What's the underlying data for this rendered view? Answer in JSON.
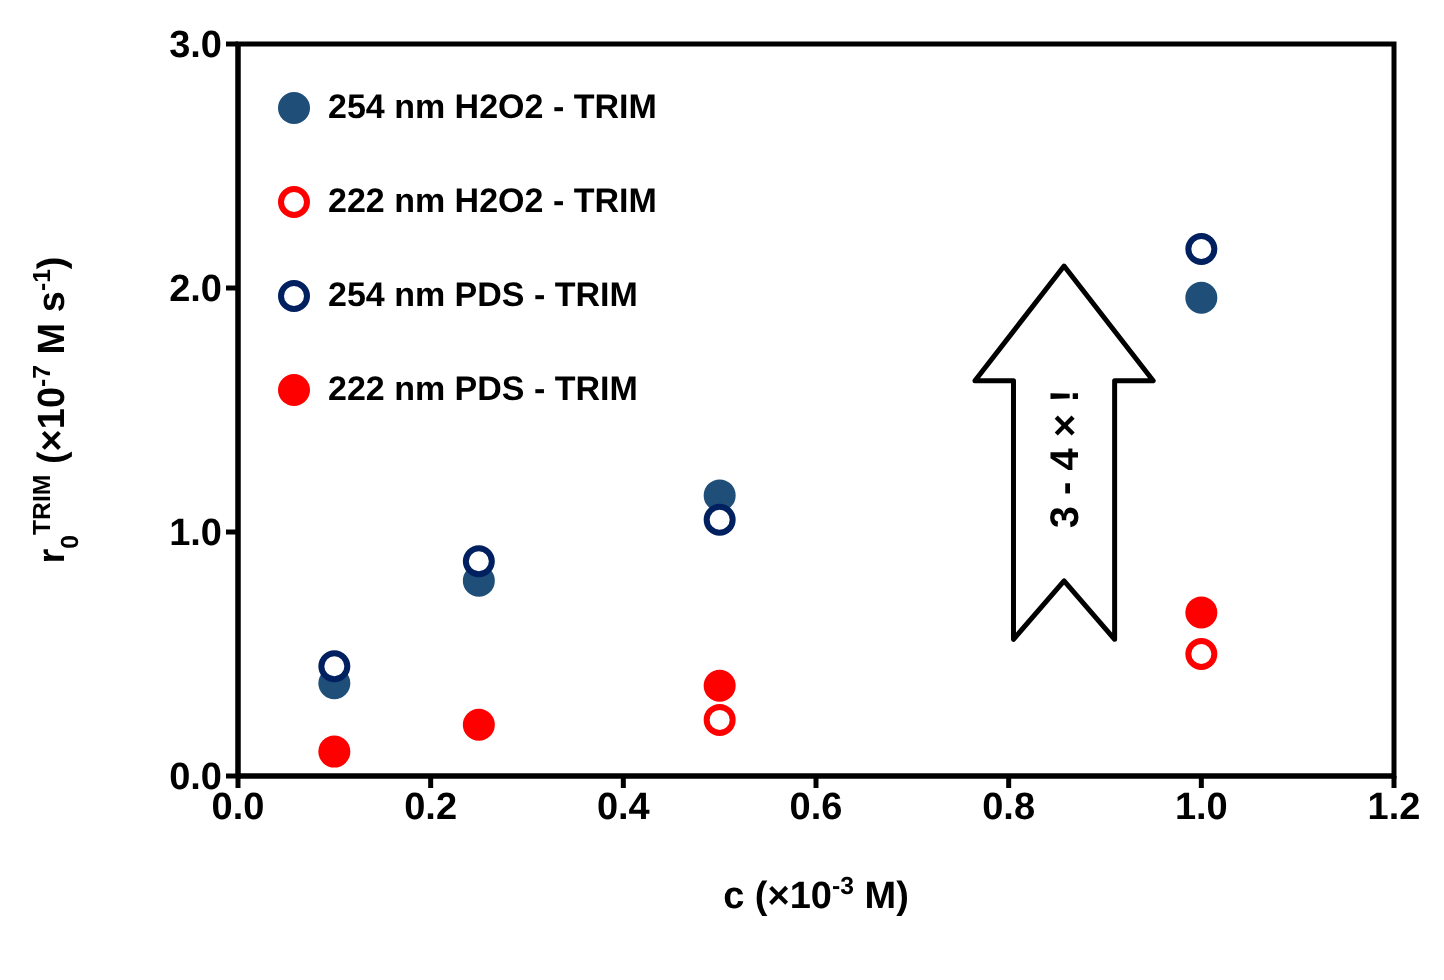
{
  "chart_data": {
    "type": "scatter",
    "xlabel": "c (×10$^{-3}$ M)",
    "ylabel": "r$_{0}$$^{TRIM}$ (×10$^{-7}$ M s$^{-1}$)",
    "xlim": [
      0,
      1.2
    ],
    "xticks": [
      {
        "value": 0,
        "label": "0.0"
      },
      {
        "value": 0.2,
        "label": "0.2"
      },
      {
        "value": 0.4,
        "label": "0.4"
      },
      {
        "value": 0.6,
        "label": "0.6"
      },
      {
        "value": 0.8,
        "label": "0.8"
      },
      {
        "value": 1,
        "label": "1.0"
      },
      {
        "value": 1.2,
        "label": "1.2"
      }
    ],
    "ylim": [
      0,
      3
    ],
    "yticks": [
      {
        "value": 0,
        "label": "0.0"
      },
      {
        "value": 1,
        "label": "1.0"
      },
      {
        "value": 2,
        "label": "2.0"
      },
      {
        "value": 3,
        "label": "3.0"
      }
    ],
    "grid": false,
    "legend": "top left",
    "x": [
      0.1,
      0.25,
      0.5,
      1.0
    ],
    "series": [
      {
        "name": "254 nm H2O2 - TRIM",
        "color": "#1f4e79",
        "marker": "circle",
        "values": [
          0.38,
          0.8,
          1.15,
          1.96
        ]
      },
      {
        "name": "222 nm H2O2 - TRIM",
        "color": "#ff0000",
        "marker": "open circle",
        "values": [
          null,
          null,
          0.23,
          0.5
        ]
      },
      {
        "name": "254 nm PDS - TRIM",
        "color": "#002060",
        "marker": "open circle",
        "values": [
          0.45,
          0.88,
          1.05,
          2.16
        ]
      },
      {
        "name": "222 nm PDS - TRIM",
        "color": "#ff0000",
        "marker": "circle",
        "values": [
          0.1,
          0.21,
          0.37,
          0.67
        ]
      }
    ],
    "annotations": [
      "3 - 4 × !"
    ]
  }
}
